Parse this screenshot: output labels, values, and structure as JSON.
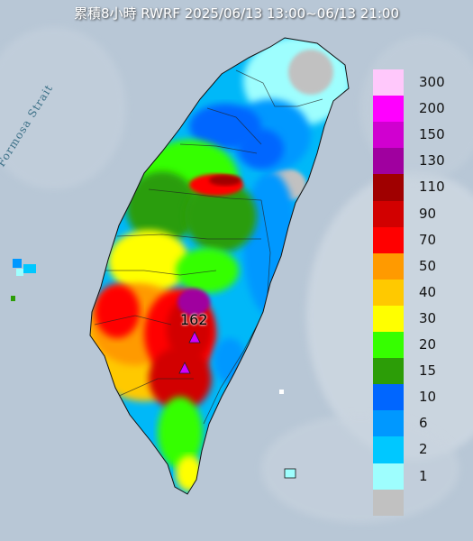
{
  "title": "累積8小時 RWRF 2025/06/13 13:00~06/13 21:00",
  "map_label": "Formosa Strait",
  "max_value": "162",
  "legend": {
    "items": [
      {
        "label": "300",
        "color": "#ffc8fb"
      },
      {
        "label": "200",
        "color": "#ff00ff"
      },
      {
        "label": "150",
        "color": "#d000d0"
      },
      {
        "label": "130",
        "color": "#a0009f"
      },
      {
        "label": "110",
        "color": "#a00000"
      },
      {
        "label": "90",
        "color": "#d20000"
      },
      {
        "label": "70",
        "color": "#ff0000"
      },
      {
        "label": "50",
        "color": "#ff9a00"
      },
      {
        "label": "40",
        "color": "#ffc900"
      },
      {
        "label": "30",
        "color": "#ffff00"
      },
      {
        "label": "20",
        "color": "#36ff00"
      },
      {
        "label": "15",
        "color": "#2c9d07"
      },
      {
        "label": "10",
        "color": "#0066ff"
      },
      {
        "label": "6",
        "color": "#0098ff"
      },
      {
        "label": "2",
        "color": "#00c8ff"
      },
      {
        "label": "1",
        "color": "#9efefe"
      },
      {
        "label": "",
        "color": "#c1c1c1"
      }
    ]
  }
}
